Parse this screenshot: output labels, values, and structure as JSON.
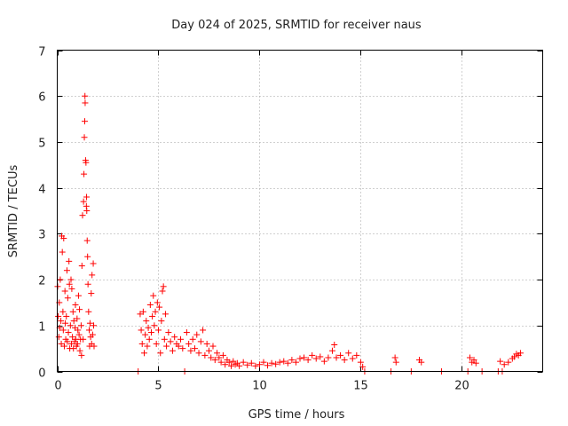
{
  "chart_data": {
    "type": "scatter",
    "title": "Day 024 of 2025, SRMTID for receiver naus",
    "xlabel": "GPS time / hours",
    "ylabel": "SRMTID / TECUs",
    "xlim": [
      0,
      24
    ],
    "ylim": [
      0,
      7
    ],
    "xticks": [
      0,
      5,
      10,
      15,
      20
    ],
    "yticks": [
      0,
      1,
      2,
      3,
      4,
      5,
      6,
      7
    ],
    "xtick_labels": [
      "0",
      "5",
      "10",
      "15",
      "20"
    ],
    "ytick_labels": [
      "0",
      "1",
      "2",
      "3",
      "4",
      "5",
      "6",
      "7"
    ],
    "grid": true,
    "marker": "+",
    "color": "#ff0000",
    "series": [
      {
        "name": "SRMTID",
        "points": [
          [
            0.02,
            1.85
          ],
          [
            0.05,
            1.2
          ],
          [
            0.08,
            0.75
          ],
          [
            0.1,
            1.5
          ],
          [
            0.12,
            0.95
          ],
          [
            0.15,
            2.0
          ],
          [
            0.18,
            1.1
          ],
          [
            0.2,
            0.6
          ],
          [
            0.22,
            2.95
          ],
          [
            0.25,
            2.6
          ],
          [
            0.28,
            1.3
          ],
          [
            0.3,
            0.9
          ],
          [
            0.32,
            2.9
          ],
          [
            0.35,
            0.55
          ],
          [
            0.38,
            1.75
          ],
          [
            0.4,
            1.05
          ],
          [
            0.42,
            0.7
          ],
          [
            0.45,
            1.2
          ],
          [
            0.48,
            2.2
          ],
          [
            0.5,
            0.65
          ],
          [
            0.52,
            1.6
          ],
          [
            0.55,
            0.85
          ],
          [
            0.58,
            2.4
          ],
          [
            0.6,
            1.9
          ],
          [
            0.62,
            0.5
          ],
          [
            0.65,
            1.0
          ],
          [
            0.68,
            2.0
          ],
          [
            0.7,
            0.6
          ],
          [
            0.72,
            1.8
          ],
          [
            0.75,
            0.75
          ],
          [
            0.78,
            1.3
          ],
          [
            0.8,
            0.5
          ],
          [
            0.82,
            1.1
          ],
          [
            0.85,
            0.65
          ],
          [
            0.88,
            0.95
          ],
          [
            0.9,
            1.45
          ],
          [
            0.92,
            0.7
          ],
          [
            0.95,
            0.55
          ],
          [
            0.98,
            1.15
          ],
          [
            1.0,
            0.6
          ],
          [
            1.02,
            0.9
          ],
          [
            1.05,
            1.65
          ],
          [
            1.08,
            0.8
          ],
          [
            1.1,
            1.35
          ],
          [
            1.12,
            0.45
          ],
          [
            1.15,
            0.7
          ],
          [
            1.18,
            1.0
          ],
          [
            1.2,
            0.35
          ],
          [
            1.22,
            2.3
          ],
          [
            1.25,
            3.4
          ],
          [
            1.28,
            0.7
          ],
          [
            1.3,
            3.7
          ],
          [
            1.32,
            4.3
          ],
          [
            1.34,
            5.1
          ],
          [
            1.36,
            5.45
          ],
          [
            1.37,
            6.0
          ],
          [
            1.38,
            5.85
          ],
          [
            1.4,
            4.6
          ],
          [
            1.42,
            4.55
          ],
          [
            1.44,
            3.6
          ],
          [
            1.45,
            3.8
          ],
          [
            1.46,
            3.5
          ],
          [
            1.48,
            2.85
          ],
          [
            1.5,
            2.5
          ],
          [
            1.52,
            1.9
          ],
          [
            1.55,
            1.3
          ],
          [
            1.58,
            0.9
          ],
          [
            1.6,
            0.55
          ],
          [
            1.62,
            1.05
          ],
          [
            1.65,
            0.75
          ],
          [
            1.68,
            1.7
          ],
          [
            1.7,
            0.6
          ],
          [
            1.72,
            2.1
          ],
          [
            1.75,
            0.8
          ],
          [
            1.78,
            2.35
          ],
          [
            1.8,
            1.0
          ],
          [
            1.82,
            0.55
          ],
          [
            4.0,
            0.0
          ],
          [
            4.1,
            1.25
          ],
          [
            4.15,
            0.9
          ],
          [
            4.2,
            0.6
          ],
          [
            4.25,
            1.3
          ],
          [
            4.3,
            0.4
          ],
          [
            4.35,
            0.8
          ],
          [
            4.4,
            1.1
          ],
          [
            4.45,
            0.55
          ],
          [
            4.5,
            0.95
          ],
          [
            4.55,
            0.7
          ],
          [
            4.6,
            1.45
          ],
          [
            4.65,
            0.85
          ],
          [
            4.7,
            1.2
          ],
          [
            4.75,
            1.65
          ],
          [
            4.8,
            1.0
          ],
          [
            4.85,
            1.3
          ],
          [
            4.9,
            0.6
          ],
          [
            4.95,
            1.5
          ],
          [
            5.0,
            0.9
          ],
          [
            5.05,
            1.4
          ],
          [
            5.1,
            0.4
          ],
          [
            5.15,
            1.1
          ],
          [
            5.2,
            1.75
          ],
          [
            5.25,
            1.85
          ],
          [
            5.3,
            0.7
          ],
          [
            5.35,
            1.25
          ],
          [
            5.4,
            0.55
          ],
          [
            5.5,
            0.85
          ],
          [
            5.6,
            0.65
          ],
          [
            5.7,
            0.45
          ],
          [
            5.8,
            0.75
          ],
          [
            5.9,
            0.6
          ],
          [
            6.0,
            0.55
          ],
          [
            6.1,
            0.7
          ],
          [
            6.2,
            0.5
          ],
          [
            6.3,
            0.0
          ],
          [
            6.4,
            0.85
          ],
          [
            6.5,
            0.6
          ],
          [
            6.6,
            0.45
          ],
          [
            6.7,
            0.7
          ],
          [
            6.8,
            0.5
          ],
          [
            6.9,
            0.8
          ],
          [
            7.0,
            0.4
          ],
          [
            7.1,
            0.65
          ],
          [
            7.2,
            0.9
          ],
          [
            7.3,
            0.35
          ],
          [
            7.4,
            0.6
          ],
          [
            7.5,
            0.45
          ],
          [
            7.6,
            0.3
          ],
          [
            7.7,
            0.55
          ],
          [
            7.8,
            0.25
          ],
          [
            7.9,
            0.4
          ],
          [
            8.0,
            0.3
          ],
          [
            8.1,
            0.2
          ],
          [
            8.2,
            0.35
          ],
          [
            8.3,
            0.15
          ],
          [
            8.4,
            0.25
          ],
          [
            8.5,
            0.2
          ],
          [
            8.6,
            0.12
          ],
          [
            8.7,
            0.22
          ],
          [
            8.8,
            0.15
          ],
          [
            8.9,
            0.18
          ],
          [
            9.0,
            0.12
          ],
          [
            9.2,
            0.2
          ],
          [
            9.4,
            0.14
          ],
          [
            9.6,
            0.18
          ],
          [
            9.8,
            0.12
          ],
          [
            10.0,
            0.15
          ],
          [
            10.2,
            0.2
          ],
          [
            10.4,
            0.13
          ],
          [
            10.6,
            0.18
          ],
          [
            10.8,
            0.16
          ],
          [
            11.0,
            0.2
          ],
          [
            11.2,
            0.22
          ],
          [
            11.4,
            0.18
          ],
          [
            11.6,
            0.25
          ],
          [
            11.8,
            0.2
          ],
          [
            12.0,
            0.28
          ],
          [
            12.2,
            0.3
          ],
          [
            12.4,
            0.25
          ],
          [
            12.6,
            0.35
          ],
          [
            12.8,
            0.28
          ],
          [
            13.0,
            0.32
          ],
          [
            13.2,
            0.22
          ],
          [
            13.4,
            0.3
          ],
          [
            13.6,
            0.45
          ],
          [
            13.7,
            0.58
          ],
          [
            13.8,
            0.3
          ],
          [
            14.0,
            0.35
          ],
          [
            14.2,
            0.25
          ],
          [
            14.4,
            0.4
          ],
          [
            14.6,
            0.28
          ],
          [
            14.8,
            0.35
          ],
          [
            15.0,
            0.2
          ],
          [
            15.1,
            0.1
          ],
          [
            15.2,
            0.0
          ],
          [
            16.5,
            0.0
          ],
          [
            16.7,
            0.3
          ],
          [
            16.75,
            0.2
          ],
          [
            17.5,
            0.0
          ],
          [
            17.9,
            0.25
          ],
          [
            18.0,
            0.2
          ],
          [
            19.0,
            0.0
          ],
          [
            20.3,
            0.0
          ],
          [
            20.4,
            0.3
          ],
          [
            20.5,
            0.2
          ],
          [
            20.6,
            0.25
          ],
          [
            20.7,
            0.18
          ],
          [
            21.0,
            0.0
          ],
          [
            21.8,
            0.0
          ],
          [
            21.9,
            0.22
          ],
          [
            22.0,
            0.0
          ],
          [
            22.1,
            0.15
          ],
          [
            22.3,
            0.2
          ],
          [
            22.5,
            0.28
          ],
          [
            22.6,
            0.32
          ],
          [
            22.7,
            0.38
          ],
          [
            22.8,
            0.35
          ],
          [
            22.9,
            0.4
          ]
        ]
      }
    ]
  }
}
